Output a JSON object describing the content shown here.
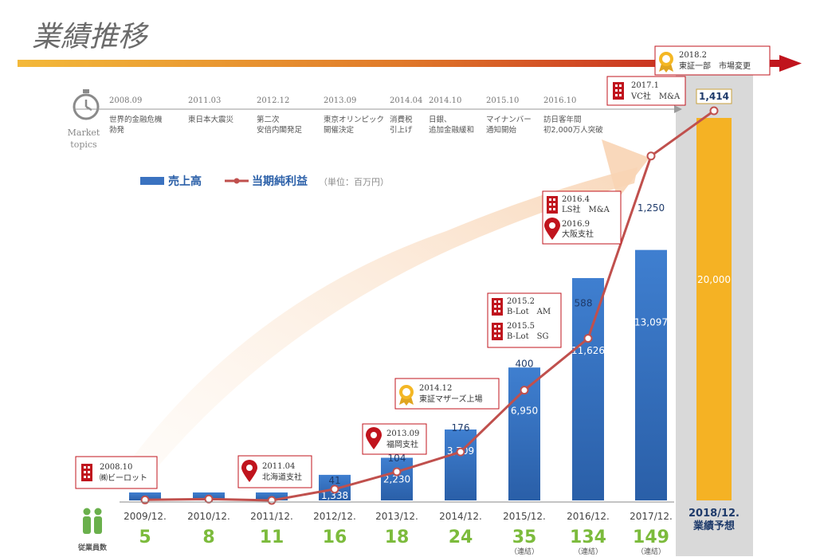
{
  "page_title": "業績推移",
  "market": {
    "label_line1": "Market",
    "label_line2": "topics",
    "icon": "stopwatch-icon",
    "events": [
      {
        "date": "2008.09",
        "line1": "世界的金融危機",
        "line2": "勃発"
      },
      {
        "date": "2011.03",
        "line1": "東日本大震災",
        "line2": ""
      },
      {
        "date": "2012.12",
        "line1": "第二次",
        "line2": "安倍内閣発足"
      },
      {
        "date": "2013.09",
        "line1": "東京オリンピック",
        "line2": "開催決定"
      },
      {
        "date": "2014.04",
        "line1": "消費税",
        "line2": "引上げ"
      },
      {
        "date": "2014.10",
        "line1": "日銀、",
        "line2": "追加金融緩和"
      },
      {
        "date": "2015.10",
        "line1": "マイナンバー",
        "line2": "通知開始"
      },
      {
        "date": "2016.10",
        "line1": "訪日客年間",
        "line2": "初2,000万人突破"
      }
    ]
  },
  "legend": {
    "sales": "売上高",
    "profit": "当期純利益",
    "unit": "（単位：百万円）"
  },
  "chart_data": {
    "type": "bar",
    "categories": [
      "2009/12.",
      "2010/12.",
      "2011/12.",
      "2012/12.",
      "2013/12.",
      "2014/12.",
      "2015/12.",
      "2016/12.",
      "2017/12."
    ],
    "series": [
      {
        "name": "売上高",
        "values": [
          230,
          200,
          220,
          1338,
          2230,
          3709,
          6950,
          11626,
          13097
        ]
      },
      {
        "name": "当期純利益",
        "values": [
          2,
          5,
          0,
          41,
          104,
          176,
          400,
          588,
          1250
        ]
      }
    ],
    "sales_labels": [
      "",
      "",
      "",
      "1,338",
      "2,230",
      "3,709",
      "6,950",
      "11,626",
      "13,097"
    ],
    "profit_labels": [
      "",
      "",
      "",
      "41",
      "104",
      "176",
      "400",
      "588",
      "1,250"
    ],
    "forecast": {
      "category_line1": "2018/12.",
      "category_line2": "業績予想",
      "sales": 20000,
      "sales_label": "20,000",
      "profit": 1414,
      "profit_label": "1,414"
    },
    "ylim_sales": [
      0,
      20000
    ],
    "ylim_profit": [
      0,
      1414
    ],
    "colors": {
      "bar": "#3a72c0",
      "line": "#c0504d",
      "forecast": "#f5b224",
      "forecast_bg": "#d9d9d9"
    }
  },
  "employees": {
    "icon": "employees-icon",
    "label": "従業員数",
    "values": [
      "5",
      "8",
      "11",
      "16",
      "18",
      "24",
      "35",
      "134",
      "149"
    ],
    "notes": [
      "",
      "",
      "",
      "",
      "",
      "",
      "（連結）",
      "（連結）",
      "（連結）"
    ]
  },
  "milestones": [
    {
      "icon": "building-icon",
      "date": "2008.10",
      "text": "㈱ビーロット"
    },
    {
      "icon": "location-pin-icon",
      "date": "2011.04",
      "text": "北海道支社"
    },
    {
      "icon": "location-pin-icon",
      "date": "2013.09",
      "text": "福岡支社"
    },
    {
      "icon": "award-ribbon-icon",
      "date": "2014.12",
      "text": "東証マザーズ上場"
    },
    {
      "icon": "building-icon",
      "date": "2015.2",
      "text": "B-Lot　AM",
      "date2": "2015.5",
      "text2": "B-Lot　SG"
    },
    {
      "icon": "building-icon",
      "date": "2016.4",
      "text": "LS社　M&A",
      "date2": "2016.9",
      "text2": "大阪支社"
    },
    {
      "icon": "building-icon",
      "date": "2017.1",
      "text": "VC社　M&A"
    },
    {
      "icon": "award-ribbon-icon",
      "date": "2018.2",
      "text": "東証一部　市場変更"
    }
  ]
}
